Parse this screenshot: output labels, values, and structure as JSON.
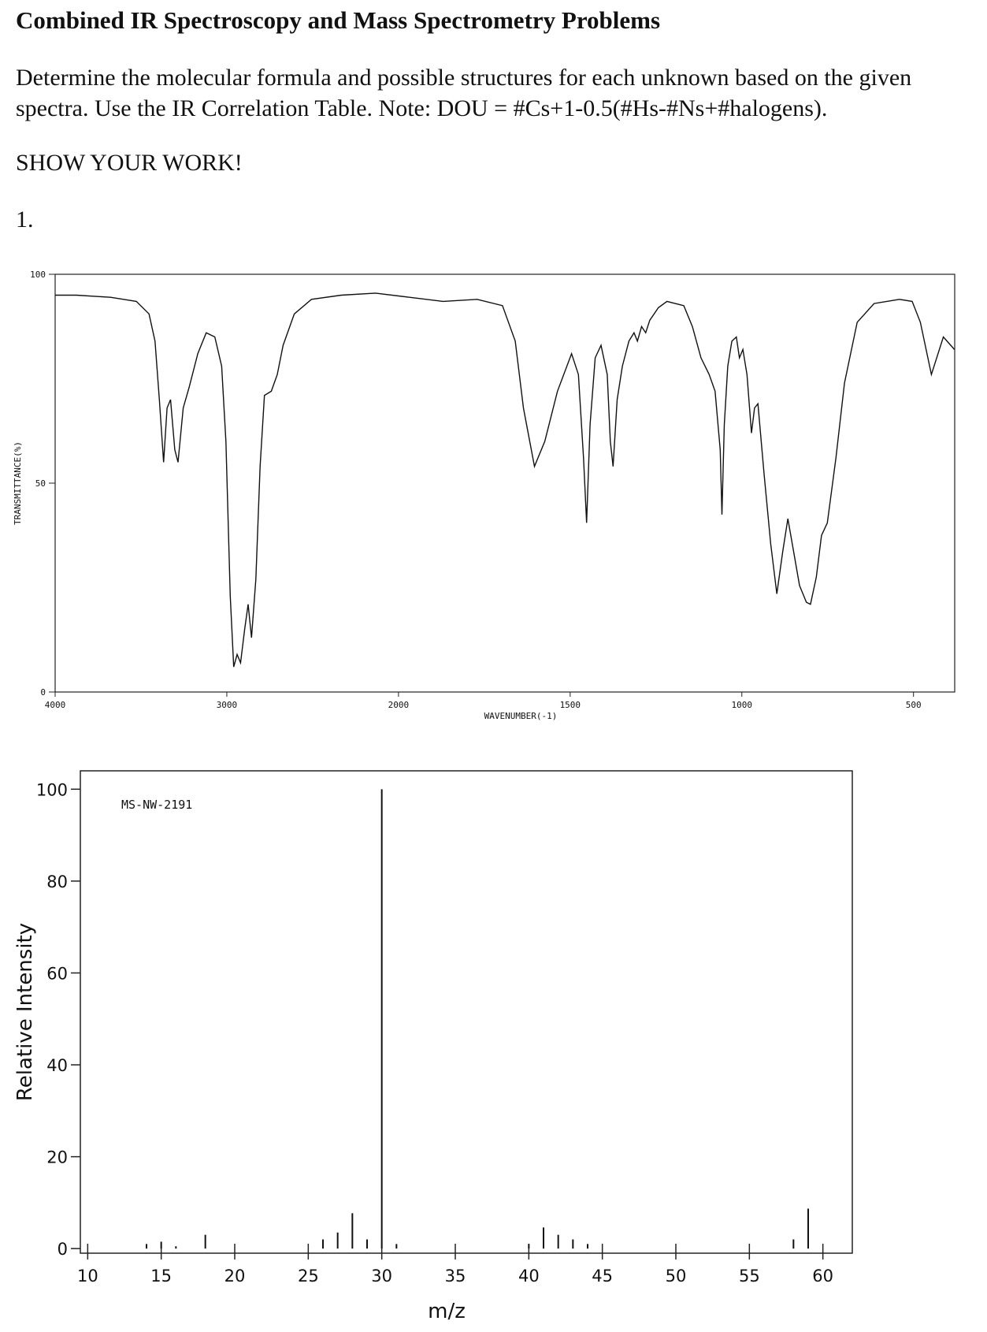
{
  "header": {
    "title": "Combined IR Spectroscopy and Mass Spectrometry Problems",
    "instructions": [
      "Determine the molecular formula and possible structures for each unknown based on the given",
      "spectra.  Use the IR Correlation Table.  Note: DOU = #Cs+1-0.5(#Hs-#Ns+#halogens)."
    ],
    "show_work": "SHOW YOUR WORK!",
    "problem_number": "1."
  },
  "chart_data": [
    {
      "type": "line",
      "xlabel": "WAVENUMBER(-1)",
      "ylabel": "TRANSMITTANCE(%)",
      "color": "#111111",
      "xlim": [
        4000,
        380
      ],
      "x_break": 2000,
      "xticks": [
        4000,
        3000,
        2000,
        1500,
        1000,
        500
      ],
      "ylim": [
        0,
        100
      ],
      "yticks": [
        0,
        50,
        100
      ],
      "x": [
        4000,
        3876,
        3677,
        3527,
        3453,
        3418,
        3393,
        3368,
        3348,
        3328,
        3303,
        3284,
        3254,
        3219,
        3169,
        3120,
        3070,
        3030,
        3005,
        2980,
        2960,
        2940,
        2920,
        2896,
        2876,
        2856,
        2831,
        2806,
        2781,
        2741,
        2706,
        2672,
        2607,
        2507,
        2333,
        2134,
        1968,
        1870,
        1771,
        1697,
        1660,
        1636,
        1604,
        1574,
        1537,
        1496,
        1476,
        1461,
        1452,
        1442,
        1427,
        1410,
        1392,
        1383,
        1375,
        1363,
        1348,
        1329,
        1314,
        1304,
        1292,
        1280,
        1268,
        1243,
        1218,
        1169,
        1144,
        1119,
        1095,
        1078,
        1063,
        1058,
        1051,
        1041,
        1029,
        1016,
        1007,
        997,
        985,
        972,
        963,
        953,
        935,
        916,
        898,
        881,
        866,
        849,
        832,
        812,
        800,
        783,
        768,
        751,
        726,
        701,
        664,
        615,
        541,
        504,
        480,
        448,
        413,
        381
      ],
      "y": [
        95,
        95,
        94.5,
        93.5,
        90.5,
        84,
        70,
        55,
        68,
        70,
        58,
        55,
        68,
        73,
        81,
        86,
        85,
        78,
        60,
        23,
        6,
        9,
        7,
        15,
        21,
        13,
        27,
        54,
        71,
        72,
        76,
        83,
        90.5,
        94,
        95,
        95.5,
        94.5,
        93.5,
        94,
        92.5,
        84,
        68,
        54,
        60,
        72,
        81,
        76,
        56,
        40.5,
        64,
        80,
        83,
        76,
        60,
        54,
        70,
        78,
        84,
        86,
        84,
        87.5,
        86,
        89,
        92,
        93.5,
        92.5,
        87.5,
        80,
        76,
        72,
        58,
        42.5,
        64,
        78,
        84,
        85,
        80,
        82,
        76,
        62,
        68,
        69,
        52,
        35.5,
        23.5,
        33.5,
        41.5,
        33.5,
        25.5,
        21.5,
        21,
        27.5,
        37.5,
        40.5,
        56,
        74,
        88.5,
        93,
        94,
        93.5,
        88.5,
        76,
        85,
        82
      ]
    },
    {
      "type": "bar",
      "xlabel": "m/z",
      "ylabel": "Relative Intensity",
      "annotation": "MS-NW-2191",
      "color": "#111111",
      "xlim": [
        9.5,
        62
      ],
      "xticks": [
        10,
        15,
        20,
        25,
        30,
        35,
        40,
        45,
        50,
        55,
        60
      ],
      "ylim": [
        -1,
        104
      ],
      "yticks": [
        0,
        20,
        40,
        60,
        80,
        100
      ],
      "x": [
        14,
        15,
        16,
        18,
        26,
        27,
        28,
        29,
        30,
        31,
        40,
        41,
        42,
        43,
        44,
        58,
        59
      ],
      "values": [
        1,
        1.5,
        0.5,
        3,
        2,
        3.5,
        7.7,
        2,
        100,
        1,
        1,
        4.6,
        3,
        2,
        1,
        2,
        8.7
      ]
    }
  ]
}
